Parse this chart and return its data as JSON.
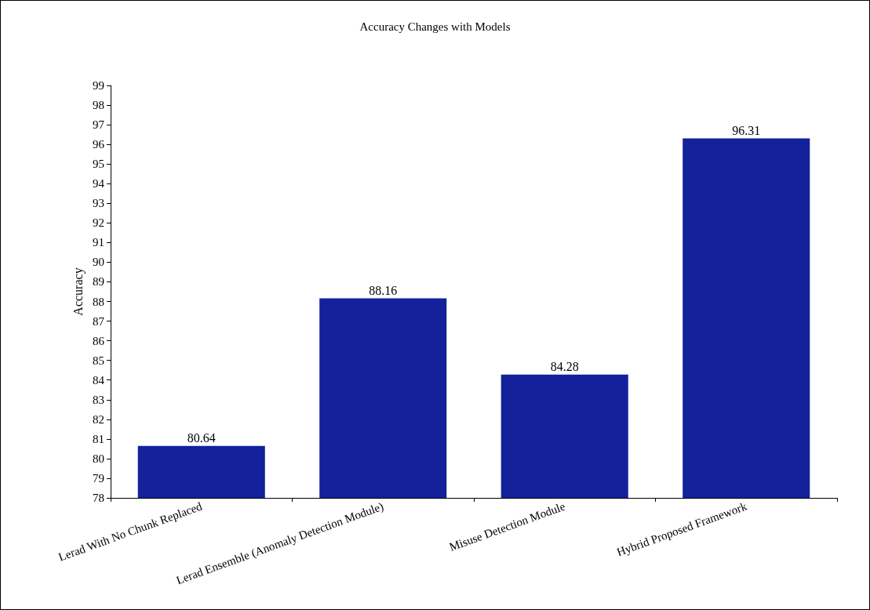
{
  "chart_data": {
    "type": "bar",
    "title": "Accuracy Changes with Models",
    "ylabel": "Accuracy",
    "categories": [
      "Lerad With No Chunk Replaced",
      "Lerad Ensemble (Anomaly Detection Module)",
      "Misuse Detection Module",
      "Hybrid Proposed Framework"
    ],
    "values": [
      80.64,
      88.16,
      84.28,
      96.31
    ],
    "color": "#13219a",
    "ylim": [
      78,
      99
    ],
    "yticks": [
      78,
      79,
      80,
      81,
      82,
      83,
      84,
      85,
      86,
      87,
      88,
      89,
      90,
      91,
      92,
      93,
      94,
      95,
      96,
      97,
      98,
      99
    ],
    "grid": false,
    "data_labels": true
  }
}
